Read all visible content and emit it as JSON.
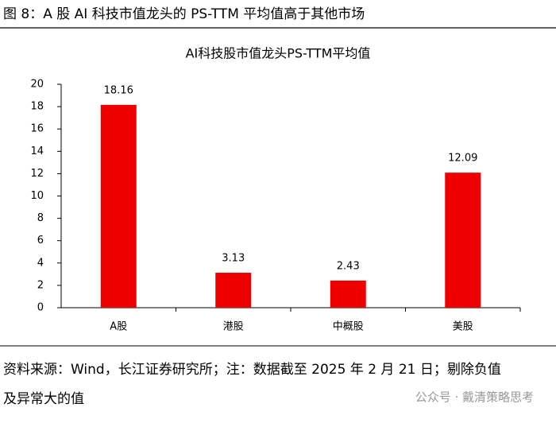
{
  "header": {
    "title": "图 8：A 股 AI 科技市值龙头的 PS-TTM 平均值高于其他市场"
  },
  "chart_data": {
    "type": "bar",
    "title": "AI科技股市值龙头PS-TTM平均值",
    "categories": [
      "A股",
      "港股",
      "中概股",
      "美股"
    ],
    "values": [
      18.16,
      3.13,
      2.43,
      12.09
    ],
    "color": "#ee0000",
    "ylim": [
      0,
      20
    ],
    "yticks": [
      0,
      2,
      4,
      6,
      8,
      10,
      12,
      14,
      16,
      18,
      20
    ],
    "grid": false
  },
  "footer": {
    "source_lines": [
      "资料来源：Wind，长江证券研究所；注：数据截至 2025 年 2 月 21 日；剔除负值",
      "及异常大的值"
    ]
  },
  "watermark": "公众号 · 戴清策略思考"
}
